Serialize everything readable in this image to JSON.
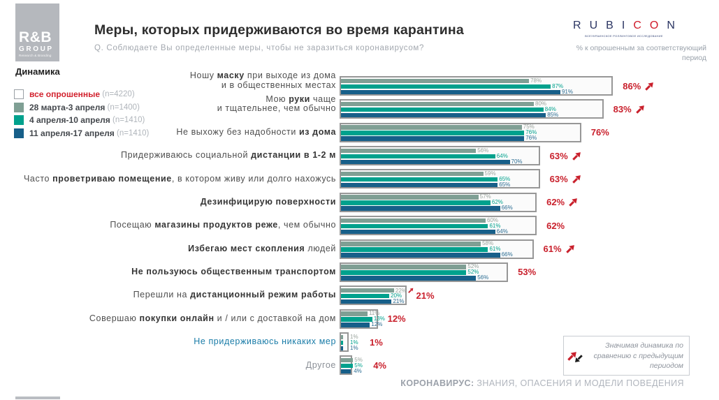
{
  "header": {
    "logo": {
      "line1": "R&B",
      "line2": "GROUP",
      "line3": "Research & Branding"
    },
    "title": "Меры, которых придерживаются во время карантина",
    "subtitle": "Q. Соблюдаете Вы определенные меры, чтобы не заразиться  коронавирусом?",
    "rubicon": {
      "letters": [
        [
          "R",
          0
        ],
        [
          "U",
          0
        ],
        [
          "B",
          0
        ],
        [
          "I",
          0
        ],
        [
          "C",
          1
        ],
        [
          "O",
          1
        ],
        [
          "N",
          0
        ]
      ],
      "tagline": "ВСЕУКРАИНСКОЕ РОЛЛИНГОВОЕ ИССЛЕДОВАНИЕ"
    },
    "note_line1": "% к опрошенным за соответствующий",
    "note_line2": "период"
  },
  "legend": {
    "title": "Динамика",
    "items": [
      {
        "label": "все опрошенные",
        "n": " (n=4220)",
        "color": "#ffffff",
        "border": "#9aa0a5",
        "label_color": "#d2222e"
      },
      {
        "label": "28 марта-3 апреля",
        "n": " (n=1400)",
        "color": "#7f9f94"
      },
      {
        "label": "4 апреля-10 апреля",
        "n": " (n=1410)",
        "color": "#00a18d"
      },
      {
        "label": "11 апреля-17 апреля",
        "n": " (n=1410)",
        "color": "#175f89"
      }
    ]
  },
  "chart_data": {
    "type": "bar",
    "orientation": "horizontal",
    "unit": "%",
    "series_names": [
      "28 марта-3 апреля (n=1400)",
      "4 апреля-10 апреля (n=1410)",
      "11 апреля-17 апреля (n=1410)"
    ],
    "colors": {
      "series": [
        "#7f9f94",
        "#00a18d",
        "#175f89"
      ],
      "value_labels": [
        "#9aa49d",
        "#00a18d",
        "#2a6c92"
      ],
      "total": "#c9202c",
      "box_border": "#979797"
    },
    "rows": [
      {
        "segments": [
          [
            "Ношу ",
            0
          ],
          [
            "маску",
            1
          ],
          [
            " при выходе из дома\nи в общественных местах",
            0
          ]
        ],
        "values": [
          78,
          87,
          91
        ],
        "total": 86,
        "arrow": true
      },
      {
        "segments": [
          [
            "Мою ",
            0
          ],
          [
            "руки",
            1
          ],
          [
            " чаще\nи тщательнее, чем обычно",
            0
          ]
        ],
        "values": [
          80,
          84,
          85
        ],
        "total": 83,
        "arrow": true
      },
      {
        "segments": [
          [
            "Не выхожу без надобности ",
            0
          ],
          [
            "из дома",
            1
          ]
        ],
        "values": [
          75,
          76,
          76
        ],
        "total": 76,
        "arrow": false
      },
      {
        "segments": [
          [
            "Придерживаюсь социальной ",
            0
          ],
          [
            "дистанции в 1-2 м",
            1
          ]
        ],
        "values": [
          56,
          64,
          70
        ],
        "total": 63,
        "arrow": true
      },
      {
        "segments": [
          [
            "Часто ",
            0
          ],
          [
            "проветриваю помещение",
            1
          ],
          [
            ", в котором живу или долго нахожусь",
            0
          ]
        ],
        "values": [
          59,
          65,
          65
        ],
        "total": 63,
        "arrow": true
      },
      {
        "segments": [
          [
            "Дезинфицирую поверхности",
            1
          ]
        ],
        "values": [
          57,
          62,
          66
        ],
        "total": 62,
        "arrow": true
      },
      {
        "segments": [
          [
            "Посещаю ",
            0
          ],
          [
            "магазины продуктов реже",
            1
          ],
          [
            ", чем обычно",
            0
          ]
        ],
        "values": [
          60,
          61,
          64
        ],
        "total": 62,
        "arrow": false
      },
      {
        "segments": [
          [
            "Избегаю мест скопления",
            1
          ],
          [
            " людей",
            0
          ]
        ],
        "values": [
          58,
          61,
          66
        ],
        "total": 61,
        "arrow": true
      },
      {
        "segments": [
          [
            "Не пользуюсь общественным транспортом",
            1
          ]
        ],
        "values": [
          52,
          52,
          56
        ],
        "total": 53,
        "arrow": false
      },
      {
        "segments": [
          [
            "Перешли на ",
            0
          ],
          [
            "дистанционный режим работы",
            1
          ]
        ],
        "values": [
          22,
          20,
          21
        ],
        "total": 21,
        "arrow": false,
        "value_arrow": 0
      },
      {
        "segments": [
          [
            "Совершаю ",
            0
          ],
          [
            "покупки онлайн",
            1
          ],
          [
            " и / или с доставкой на дом",
            0
          ]
        ],
        "values": [
          11,
          13,
          12
        ],
        "total": 12,
        "arrow": false
      },
      {
        "segments": [
          [
            "Не придерживаюсь никаких мер",
            0
          ]
        ],
        "values": [
          1,
          1,
          1
        ],
        "total": 1,
        "arrow": false,
        "label_color": "#1a7ca8"
      },
      {
        "segments": [
          [
            "Другое",
            0
          ]
        ],
        "values": [
          5,
          5,
          4
        ],
        "total": 4,
        "arrow": false,
        "label_color": "#8b9097"
      }
    ]
  },
  "sig_note": {
    "line1": "Значимая динамика по",
    "line2": "сравнению с предыдущим",
    "line3": "периодом"
  },
  "footer": {
    "bold": "КОРОНАВИРУС:",
    "rest": " ЗНАНИЯ, ОПАСЕНИЯ И МОДЕЛИ ПОВЕДЕНИЯ"
  }
}
